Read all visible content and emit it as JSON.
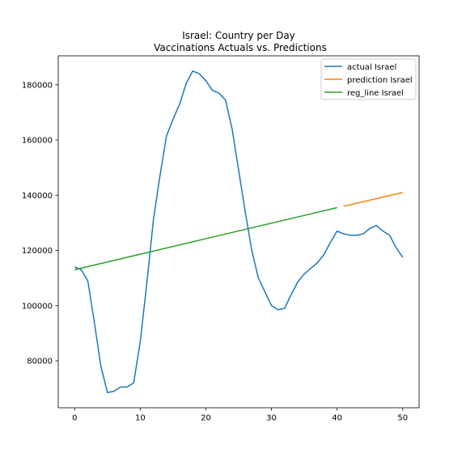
{
  "chart_data": {
    "type": "line",
    "title": "Israel: Country per Day",
    "subtitle": "Vaccinations Actuals vs. Predictions",
    "xlabel": "",
    "ylabel": "",
    "xlim": [
      -2.5,
      52.5
    ],
    "ylim": [
      63000,
      190500
    ],
    "x_ticks": [
      0,
      10,
      20,
      30,
      40,
      50
    ],
    "y_ticks": [
      80000,
      100000,
      120000,
      140000,
      160000,
      180000
    ],
    "grid": false,
    "legend_position": "top-right",
    "series": [
      {
        "name": "actual Israel",
        "color": "#1f77b4",
        "x": [
          0,
          1,
          2,
          3,
          4,
          5,
          6,
          7,
          8,
          9,
          10,
          11,
          12,
          13,
          14,
          15,
          16,
          17,
          18,
          19,
          20,
          21,
          22,
          23,
          24,
          25,
          26,
          27,
          28,
          29,
          30,
          31,
          32,
          33,
          34,
          35,
          36,
          37,
          38,
          39,
          40,
          41,
          42,
          43,
          44,
          45,
          46,
          47,
          48,
          49,
          50
        ],
        "y": [
          114000,
          113000,
          109000,
          94000,
          78000,
          68500,
          69000,
          70500,
          70500,
          72000,
          87000,
          108000,
          131000,
          147000,
          161500,
          167500,
          173000,
          180500,
          185000,
          184000,
          181500,
          178000,
          177000,
          174500,
          164000,
          149000,
          134000,
          120000,
          110000,
          105000,
          100000,
          98500,
          99000,
          104000,
          108500,
          111500,
          113500,
          115500,
          118500,
          123000,
          127000,
          126000,
          125500,
          125500,
          126000,
          128000,
          129000,
          127000,
          125500,
          121000,
          117500
        ]
      },
      {
        "name": "prediction Israel",
        "color": "#ff7f0e",
        "x": [
          41,
          50
        ],
        "y": [
          136000,
          141000
        ]
      },
      {
        "name": "reg_line Israel",
        "color": "#2ca02c",
        "x": [
          0,
          40
        ],
        "y": [
          113000,
          135500
        ]
      }
    ]
  }
}
